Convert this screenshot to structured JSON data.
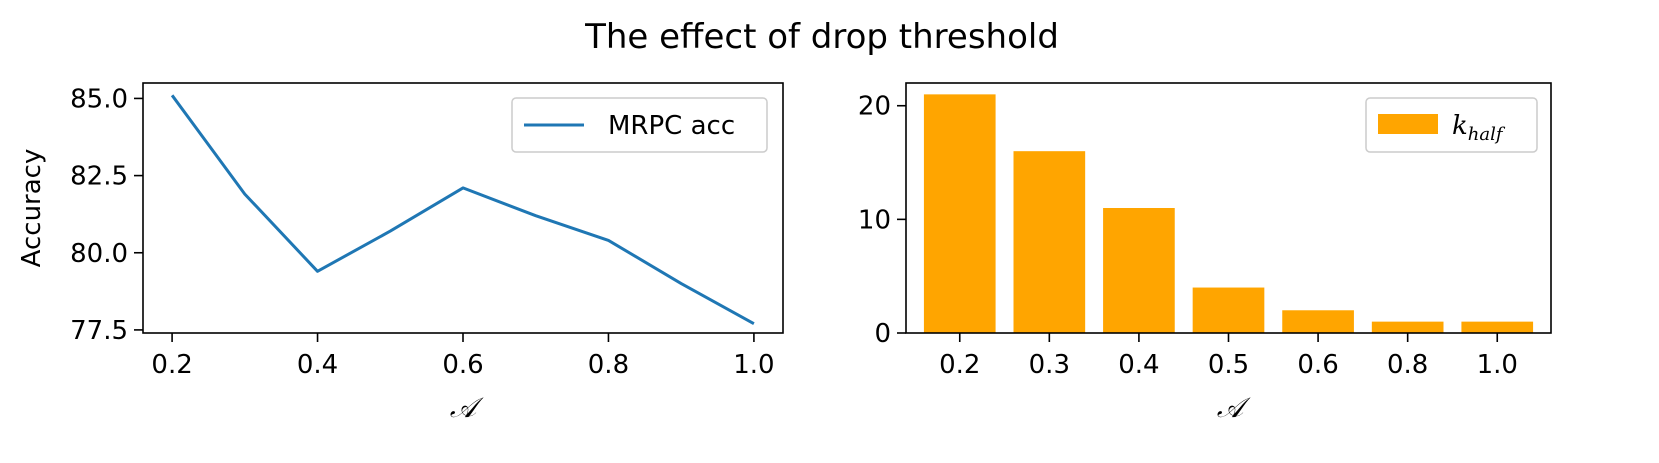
{
  "title": "The effect of drop threshold",
  "chart_data": [
    {
      "type": "line",
      "xlabel": "𝒜",
      "ylabel": "Accuracy",
      "x": [
        0.2,
        0.3,
        0.4,
        0.5,
        0.6,
        0.7,
        0.8,
        0.9,
        1.0
      ],
      "series": [
        {
          "name": "MRPC acc",
          "values": [
            85.1,
            81.9,
            79.4,
            80.7,
            82.1,
            81.2,
            80.4,
            79.0,
            77.7
          ],
          "color": "#1f77b4"
        }
      ],
      "xticks": [
        0.2,
        0.4,
        0.6,
        0.8,
        1.0
      ],
      "xtick_labels": [
        "0.2",
        "0.4",
        "0.6",
        "0.8",
        "1.0"
      ],
      "yticks": [
        77.5,
        80.0,
        82.5,
        85.0
      ],
      "ytick_labels": [
        "77.5",
        "80.0",
        "82.5",
        "85.0"
      ],
      "xlim": [
        0.16,
        1.04
      ],
      "ylim": [
        77.4,
        85.5
      ],
      "legend": "top-right"
    },
    {
      "type": "bar",
      "xlabel": "𝒜",
      "categories": [
        "0.2",
        "0.3",
        "0.4",
        "0.5",
        "0.6",
        "0.8",
        "1.0"
      ],
      "series": [
        {
          "name": "k",
          "name_sub": "half",
          "values": [
            21,
            16,
            11,
            4,
            2,
            1,
            1
          ],
          "color": "#ffa500"
        }
      ],
      "yticks": [
        0,
        10,
        20
      ],
      "ytick_labels": [
        "0",
        "10",
        "20"
      ],
      "ylim": [
        0,
        22
      ],
      "legend": "top-right"
    }
  ]
}
